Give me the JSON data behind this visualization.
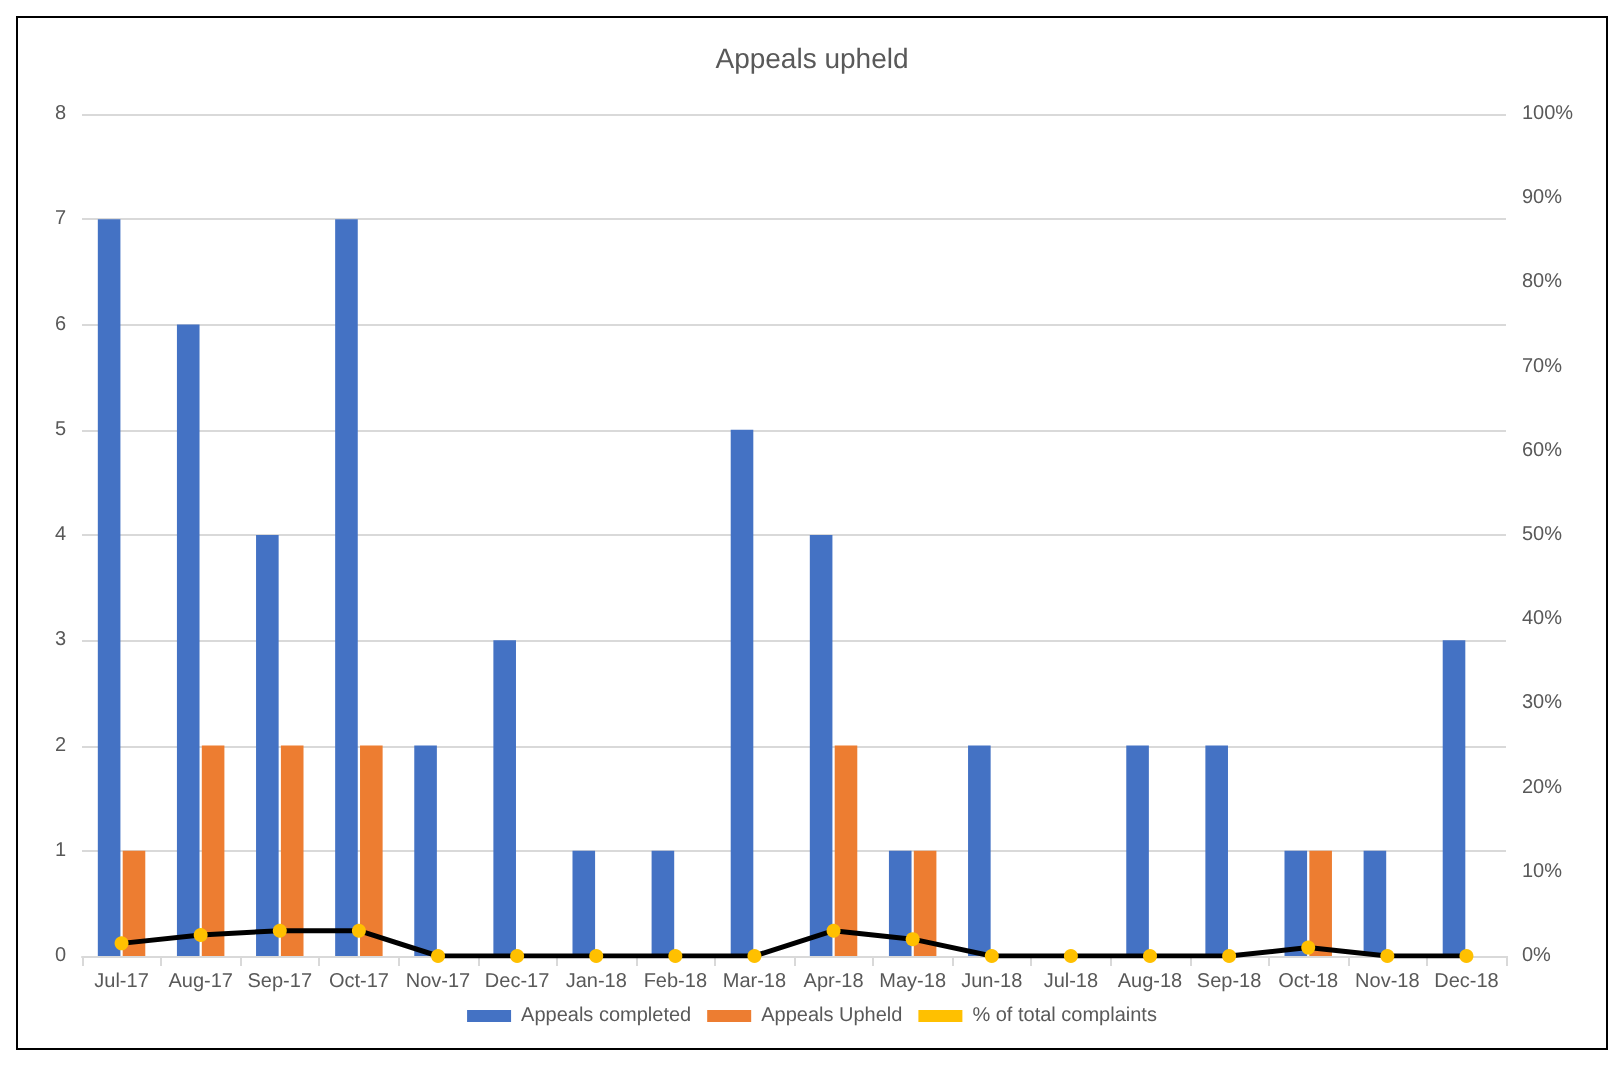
{
  "chart_data": {
    "type": "bar",
    "title": "Appeals upheld",
    "categories": [
      "Jul-17",
      "Aug-17",
      "Sep-17",
      "Oct-17",
      "Nov-17",
      "Dec-17",
      "Jan-18",
      "Feb-18",
      "Mar-18",
      "Apr-18",
      "May-18",
      "Jun-18",
      "Jul-18",
      "Aug-18",
      "Sep-18",
      "Oct-18",
      "Nov-18",
      "Dec-18"
    ],
    "series": [
      {
        "name": "Appeals completed",
        "color": "#4472c4",
        "values": [
          7,
          6,
          4,
          7,
          2,
          3,
          1,
          1,
          5,
          4,
          1,
          2,
          0,
          2,
          2,
          1,
          1,
          3
        ]
      },
      {
        "name": "Appeals Upheld",
        "color": "#ed7d31",
        "values": [
          1,
          2,
          2,
          2,
          0,
          0,
          0,
          0,
          0,
          2,
          1,
          0,
          0,
          0,
          0,
          1,
          0,
          0
        ]
      },
      {
        "name": "% of total complaints",
        "type": "line",
        "axis": "y2",
        "color": "#000000",
        "colors": [
          "#ffc000",
          "#ffc000",
          "#ffc000",
          "#ffc000",
          "#ffc000",
          "#ffc000",
          "#ffc000",
          "#ffc000",
          "#ffc000",
          "#ffc000",
          "#ffc000",
          "#ffc000",
          "#ffc000",
          "#ffc000",
          "#ffc000",
          "#ffc000",
          "#ffc000",
          "#ffc000"
        ],
        "marker": "circle",
        "values": [
          1.5,
          2.5,
          3,
          3,
          0,
          0,
          0,
          0,
          0,
          3,
          2,
          0,
          0,
          0,
          0,
          1,
          0,
          0
        ]
      }
    ],
    "ylim": [
      0,
      8
    ],
    "yticks": [
      0,
      1,
      2,
      3,
      4,
      5,
      6,
      7,
      8
    ],
    "y2lim": [
      0,
      100
    ],
    "y2ticks": [
      {
        "value": 0,
        "label": "0%"
      },
      {
        "value": 10,
        "label": "10%"
      },
      {
        "value": 20,
        "label": "20%"
      },
      {
        "value": 30,
        "label": "30%"
      },
      {
        "value": 40,
        "label": "40%"
      },
      {
        "value": 50,
        "label": "50%"
      },
      {
        "value": 60,
        "label": "60%"
      },
      {
        "value": 70,
        "label": "70%"
      },
      {
        "value": 80,
        "label": "80%"
      },
      {
        "value": 90,
        "label": "90%"
      },
      {
        "value": 100,
        "label": "100%"
      }
    ],
    "grid": "y",
    "legend": "bottom"
  }
}
